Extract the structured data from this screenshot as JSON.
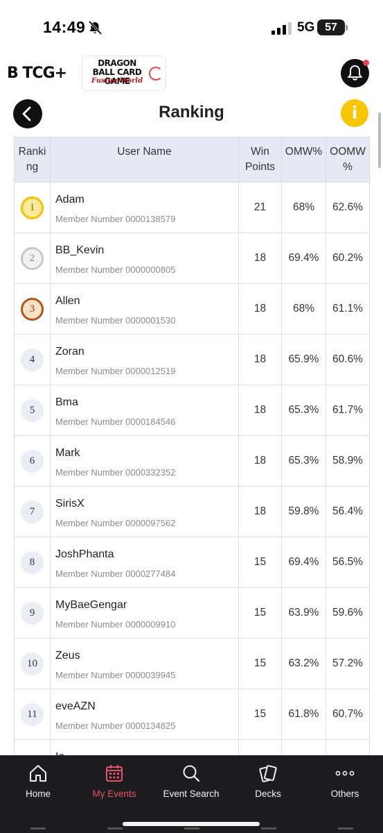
{
  "status_bar": {
    "time": "14:49",
    "network": "5G",
    "battery": "57"
  },
  "header": {
    "brand_logo_text": "B TCG+",
    "game_logo_title": "DRAGON BALL CARD GAME",
    "game_logo_subtitle": "Fusion World",
    "page_title": "Ranking",
    "info_label": "i"
  },
  "table": {
    "headers": {
      "rank_line1": "Ranki",
      "rank_line2": "ng",
      "user_name": "User Name",
      "win_line1": "Win",
      "win_line2": "Points",
      "omw": "OMW%",
      "oomw_line1": "OOMW",
      "oomw_line2": "%"
    },
    "rows": [
      {
        "rank": "1",
        "medal": "gold",
        "name": "Adam",
        "member": "Member Number 0000138579",
        "win_points": "21",
        "omw": "68%",
        "oomw": "62.6%"
      },
      {
        "rank": "2",
        "medal": "silver",
        "name": "BB_Kevin",
        "member": "Member Number 0000000805",
        "win_points": "18",
        "omw": "69.4%",
        "oomw": "60.2%"
      },
      {
        "rank": "3",
        "medal": "bronze",
        "name": "Allen",
        "member": "Member Number 0000001530",
        "win_points": "18",
        "omw": "68%",
        "oomw": "61.1%"
      },
      {
        "rank": "4",
        "medal": "none",
        "name": "Zoran",
        "member": "Member Number 0000012519",
        "win_points": "18",
        "omw": "65.9%",
        "oomw": "60.6%"
      },
      {
        "rank": "5",
        "medal": "none",
        "name": "Bma",
        "member": "Member Number 0000184546",
        "win_points": "18",
        "omw": "65.3%",
        "oomw": "61.7%"
      },
      {
        "rank": "6",
        "medal": "none",
        "name": "Mark",
        "member": "Member Number 0000332352",
        "win_points": "18",
        "omw": "65.3%",
        "oomw": "58.9%"
      },
      {
        "rank": "7",
        "medal": "none",
        "name": "SirisX",
        "member": "Member Number 0000097562",
        "win_points": "18",
        "omw": "59.8%",
        "oomw": "56.4%"
      },
      {
        "rank": "8",
        "medal": "none",
        "name": "JoshPhanta",
        "member": "Member Number 0000277484",
        "win_points": "15",
        "omw": "69.4%",
        "oomw": "56.5%"
      },
      {
        "rank": "9",
        "medal": "none",
        "name": "MyBaeGengar",
        "member": "Member Number 0000009910",
        "win_points": "15",
        "omw": "63.9%",
        "oomw": "59.6%"
      },
      {
        "rank": "10",
        "medal": "none",
        "name": "Zeus",
        "member": "Member Number 0000039945",
        "win_points": "15",
        "omw": "63.2%",
        "oomw": "57.2%"
      },
      {
        "rank": "11",
        "medal": "none",
        "name": "eveAZN",
        "member": "Member Number 0000134825",
        "win_points": "15",
        "omw": "61.8%",
        "oomw": "60.7%"
      }
    ],
    "partial_row_name": "Iz"
  },
  "bottom_nav": {
    "items": [
      {
        "label": "Home",
        "icon": "home-icon",
        "active": false
      },
      {
        "label": "My Events",
        "icon": "calendar-icon",
        "active": true
      },
      {
        "label": "Event Search",
        "icon": "search-icon",
        "active": false
      },
      {
        "label": "Decks",
        "icon": "cards-icon",
        "active": false
      },
      {
        "label": "Others",
        "icon": "more-dots-icon",
        "active": false
      }
    ]
  },
  "colors": {
    "accent_active": "#e4536a",
    "info_yellow": "#f7c600",
    "nav_bg": "#1d1d1f",
    "header_bg": "#e8e8f4"
  }
}
